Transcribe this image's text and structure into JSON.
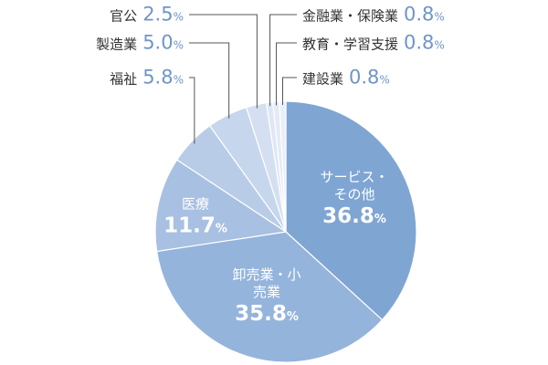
{
  "chart_data": {
    "type": "pie",
    "categories": [
      "サービス・その他",
      "卸売業・小売業",
      "医療",
      "福祉",
      "製造業",
      "官公",
      "金融業・保険業",
      "教育・学習支援",
      "建設業"
    ],
    "values": [
      36.8,
      35.8,
      11.7,
      5.8,
      5.0,
      2.5,
      0.8,
      0.8,
      0.8
    ],
    "value_labels": [
      "36.8",
      "35.8",
      "11.7",
      "5.8",
      "5.0",
      "2.5",
      "0.8",
      "0.8",
      "0.8"
    ],
    "unit": "%",
    "colors": [
      "#7fa5d3",
      "#95b4db",
      "#a8c0e1",
      "#b8cce7",
      "#c6d6ec",
      "#d4e0f1",
      "#dfe7f4",
      "#e4ebf6",
      "#e9eff8"
    ]
  }
}
